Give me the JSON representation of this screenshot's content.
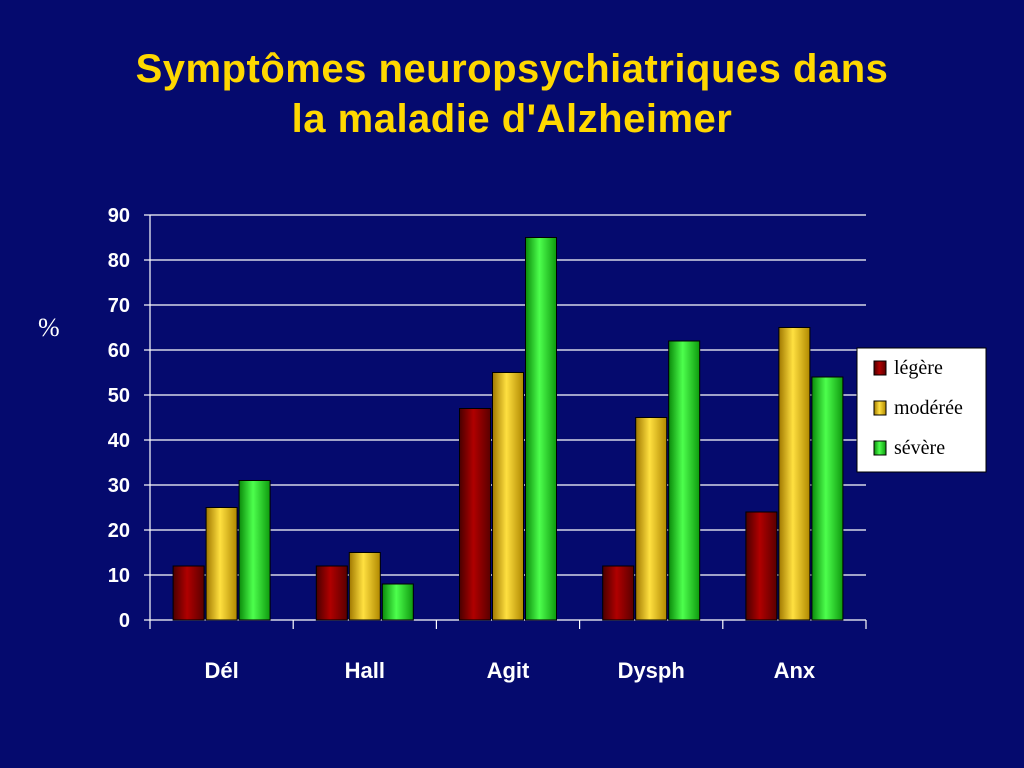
{
  "slide": {
    "title_line1": "Symptômes neuropsychiatriques dans",
    "title_line2": "la maladie d'Alzheimer"
  },
  "chart_data": {
    "type": "bar",
    "title": "",
    "xlabel": "",
    "ylabel": "%",
    "ylim": [
      0,
      90
    ],
    "yticks": [
      0,
      10,
      20,
      30,
      40,
      50,
      60,
      70,
      80,
      90
    ],
    "grid": true,
    "legend_position": "right",
    "categories": [
      "Dél",
      "Hall",
      "Agit",
      "Dysph",
      "Anx"
    ],
    "series": [
      {
        "name": "légère",
        "color": "#8b0000",
        "values": [
          12,
          12,
          47,
          12,
          24
        ]
      },
      {
        "name": "modérée",
        "color": "#f2c200",
        "values": [
          25,
          15,
          55,
          45,
          65
        ]
      },
      {
        "name": "sévère",
        "color": "#1ed81e",
        "values": [
          31,
          8,
          85,
          62,
          54
        ]
      }
    ]
  }
}
